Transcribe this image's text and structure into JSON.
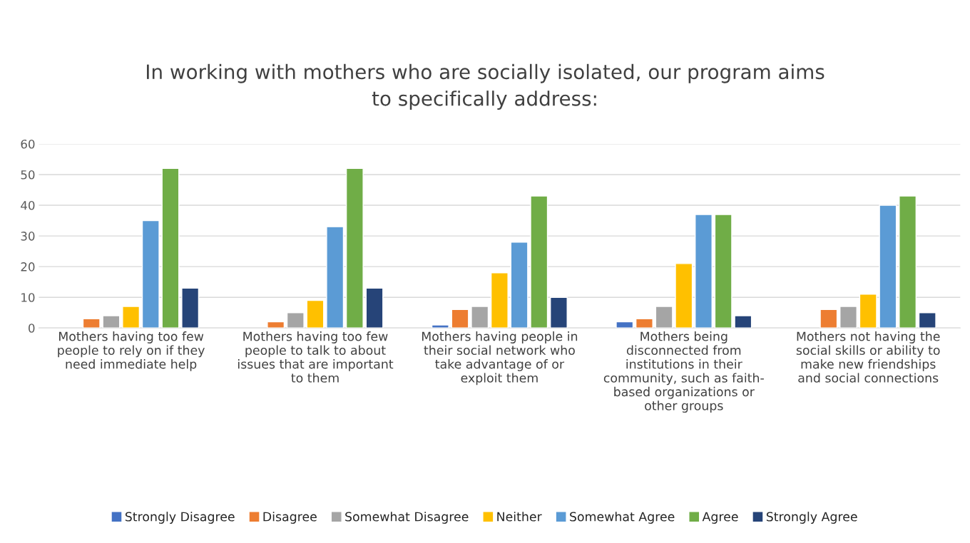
{
  "chart_data": {
    "type": "bar",
    "title": "In working with mothers who are socially isolated, our program aims\nto specifically address:",
    "categories": [
      "Mothers having too few\npeople to rely on if they\nneed immediate help",
      "Mothers having too few\npeople to talk to about\nissues that are important\nto them",
      "Mothers having people in\ntheir social network who\ntake advantage of or\nexploit them",
      "Mothers being\ndisconnected from\ninstitutions in their\ncommunity, such as faith-\nbased organizations or\nother groups",
      "Mothers not having the\nsocial skills or ability to\nmake new friendships\nand social connections"
    ],
    "series": [
      {
        "name": "Strongly Disagree",
        "color": "#4472c4",
        "values": [
          null,
          null,
          1,
          2,
          null
        ]
      },
      {
        "name": "Disagree",
        "color": "#ed7d31",
        "values": [
          3,
          2,
          6,
          3,
          6
        ]
      },
      {
        "name": "Somewhat Disagree",
        "color": "#a5a5a5",
        "values": [
          4,
          5,
          7,
          7,
          7
        ]
      },
      {
        "name": "Neither",
        "color": "#ffc000",
        "values": [
          7,
          9,
          18,
          21,
          11
        ]
      },
      {
        "name": "Somewhat Agree",
        "color": "#5b9bd5",
        "values": [
          35,
          33,
          28,
          37,
          40
        ]
      },
      {
        "name": "Agree",
        "color": "#70ad47",
        "values": [
          52,
          52,
          43,
          37,
          43
        ]
      },
      {
        "name": "Strongly Agree",
        "color": "#264478",
        "values": [
          13,
          13,
          10,
          4,
          5
        ]
      }
    ],
    "ylim": [
      0,
      60
    ],
    "yticks": [
      0,
      10,
      20,
      30,
      40,
      50,
      60
    ],
    "grid": "y",
    "legend": "bottom"
  }
}
